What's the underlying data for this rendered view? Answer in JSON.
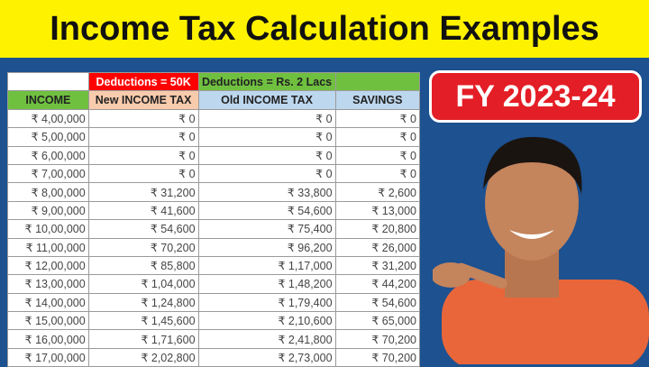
{
  "title": "Income Tax Calculation Examples",
  "badge": "FY 2023-24",
  "colors": {
    "title_bg": "#fff200",
    "background": "#1d5190",
    "badge": "#e41e26",
    "ded_new": "#ff0000",
    "ded_old": "#70c040",
    "income_header": "#70c040",
    "new_header": "#f8cbad",
    "old_header": "#bdd7ee"
  },
  "table": {
    "deductions_new": "Deductions = 50K",
    "deductions_old": "Deductions = Rs. 2 Lacs",
    "headers": [
      "INCOME",
      "New INCOME TAX",
      "Old INCOME TAX",
      "SAVINGS"
    ],
    "rows": [
      [
        "₹ 4,00,000",
        "₹ 0",
        "₹ 0",
        "₹ 0"
      ],
      [
        "₹ 5,00,000",
        "₹ 0",
        "₹ 0",
        "₹ 0"
      ],
      [
        "₹ 6,00,000",
        "₹ 0",
        "₹ 0",
        "₹ 0"
      ],
      [
        "₹ 7,00,000",
        "₹ 0",
        "₹ 0",
        "₹ 0"
      ],
      [
        "₹ 8,00,000",
        "₹ 31,200",
        "₹ 33,800",
        "₹ 2,600"
      ],
      [
        "₹ 9,00,000",
        "₹ 41,600",
        "₹ 54,600",
        "₹ 13,000"
      ],
      [
        "₹ 10,00,000",
        "₹ 54,600",
        "₹ 75,400",
        "₹ 20,800"
      ],
      [
        "₹ 11,00,000",
        "₹ 70,200",
        "₹ 96,200",
        "₹ 26,000"
      ],
      [
        "₹ 12,00,000",
        "₹ 85,800",
        "₹ 1,17,000",
        "₹ 31,200"
      ],
      [
        "₹ 13,00,000",
        "₹ 1,04,000",
        "₹ 1,48,200",
        "₹ 44,200"
      ],
      [
        "₹ 14,00,000",
        "₹ 1,24,800",
        "₹ 1,79,400",
        "₹ 54,600"
      ],
      [
        "₹ 15,00,000",
        "₹ 1,45,600",
        "₹ 2,10,600",
        "₹ 65,000"
      ],
      [
        "₹ 16,00,000",
        "₹ 1,71,600",
        "₹ 2,41,800",
        "₹ 70,200"
      ],
      [
        "₹ 17,00,000",
        "₹ 2,02,800",
        "₹ 2,73,000",
        "₹ 70,200"
      ]
    ]
  }
}
